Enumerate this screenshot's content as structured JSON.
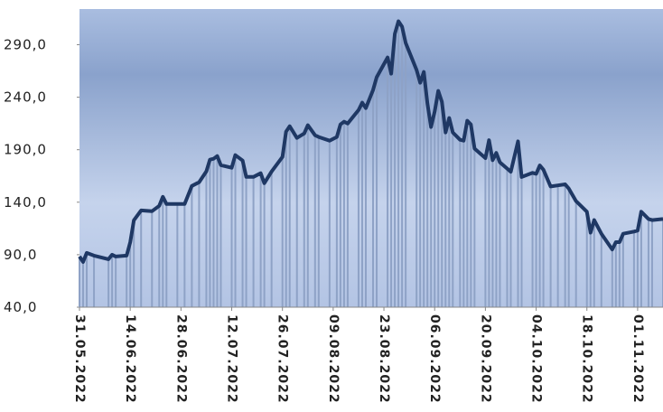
{
  "chart_data": {
    "type": "line",
    "x": [
      "31.05.2022",
      "01.06.2022",
      "02.06.2022",
      "04.06.2022",
      "08.06.2022",
      "09.06.2022",
      "10.06.2022",
      "13.06.2022",
      "14.06.2022",
      "15.06.2022",
      "17.06.2022",
      "20.06.2022",
      "22.06.2022",
      "23.06.2022",
      "24.06.2022",
      "27.06.2022",
      "29.06.2022",
      "01.07.2022",
      "03.07.2022",
      "05.07.2022",
      "06.07.2022",
      "07.07.2022",
      "08.07.2022",
      "09.07.2022",
      "12.07.2022",
      "13.07.2022",
      "15.07.2022",
      "16.07.2022",
      "18.07.2022",
      "20.07.2022",
      "21.07.2022",
      "23.07.2022",
      "26.07.2022",
      "27.07.2022",
      "28.07.2022",
      "30.07.2022",
      "01.08.2022",
      "02.08.2022",
      "04.08.2022",
      "05.08.2022",
      "08.08.2022",
      "10.08.2022",
      "11.08.2022",
      "12.08.2022",
      "13.08.2022",
      "16.08.2022",
      "17.08.2022",
      "18.08.2022",
      "20.08.2022",
      "21.08.2022",
      "24.08.2022",
      "25.08.2022",
      "26.08.2022",
      "27.08.2022",
      "28.08.2022",
      "29.08.2022",
      "01.09.2022",
      "02.09.2022",
      "03.09.2022",
      "04.09.2022",
      "05.09.2022",
      "06.09.2022",
      "07.09.2022",
      "08.09.2022",
      "09.09.2022",
      "10.09.2022",
      "11.09.2022",
      "13.09.2022",
      "14.09.2022",
      "15.09.2022",
      "16.09.2022",
      "17.09.2022",
      "20.09.2022",
      "21.09.2022",
      "22.09.2022",
      "23.09.2022",
      "24.09.2022",
      "26.09.2022",
      "27.09.2022",
      "29.09.2022",
      "30.09.2022",
      "03.10.2022",
      "04.10.2022",
      "05.10.2022",
      "06.10.2022",
      "08.10.2022",
      "10.10.2022",
      "12.10.2022",
      "13.10.2022",
      "15.10.2022",
      "18.10.2022",
      "19.10.2022",
      "20.10.2022",
      "22.10.2022",
      "25.10.2022",
      "26.10.2022",
      "27.10.2022",
      "28.10.2022",
      "31.10.2022",
      "01.11.2022",
      "02.11.2022",
      "04.11.2022",
      "05.11.2022",
      "08.11.2022"
    ],
    "series": [
      {
        "color": "#1f3864",
        "bar_color": "#8ea2c6",
        "values": [
          88.3,
          83.1,
          91.7,
          89.1,
          85.7,
          90,
          88.3,
          89.1,
          102,
          122.8,
          132.2,
          131.4,
          136.6,
          145.2,
          138.3,
          138.3,
          138.3,
          155.5,
          159,
          169.3,
          180.5,
          181.4,
          184,
          175.3,
          172.8,
          184.8,
          179.7,
          164.1,
          164.1,
          167.6,
          158.1,
          169.3,
          183.1,
          207.2,
          212.4,
          201.2,
          205.5,
          213.3,
          203.8,
          202.1,
          198.6,
          202.1,
          214.1,
          216.7,
          215,
          227.9,
          234.8,
          229.7,
          246.9,
          259,
          277.9,
          262.4,
          300.3,
          312.4,
          307.2,
          291.7,
          265.9,
          253.8,
          264.1,
          234,
          211.6,
          226.2,
          246,
          235.7,
          206.4,
          220.2,
          206.4,
          199.5,
          198.6,
          217.6,
          214,
          191,
          182,
          199,
          180,
          187,
          178,
          172,
          169,
          198,
          164,
          168,
          167,
          175,
          171,
          155,
          156,
          157,
          153,
          141,
          131,
          111,
          123,
          110,
          95,
          102,
          102,
          110,
          112,
          113,
          131,
          124,
          123,
          124
        ]
      }
    ],
    "xlim": [
      "31.05.2022",
      "08.11.2022"
    ],
    "xticks": [
      "31.05.2022",
      "14.06.2022",
      "28.06.2022",
      "12.07.2022",
      "26.07.2022",
      "09.08.2022",
      "23.08.2022",
      "06.09.2022",
      "20.09.2022",
      "04.10.2022",
      "18.10.2022",
      "01.11.2022"
    ],
    "ylim": [
      40,
      324
    ],
    "yticks": [
      {
        "value": 40,
        "label": "40,0"
      },
      {
        "value": 90,
        "label": "90,0"
      },
      {
        "value": 140,
        "label": "140,0"
      },
      {
        "value": 190,
        "label": "190,0"
      },
      {
        "value": 240,
        "label": "240,0"
      },
      {
        "value": 290,
        "label": "290,0"
      }
    ]
  }
}
